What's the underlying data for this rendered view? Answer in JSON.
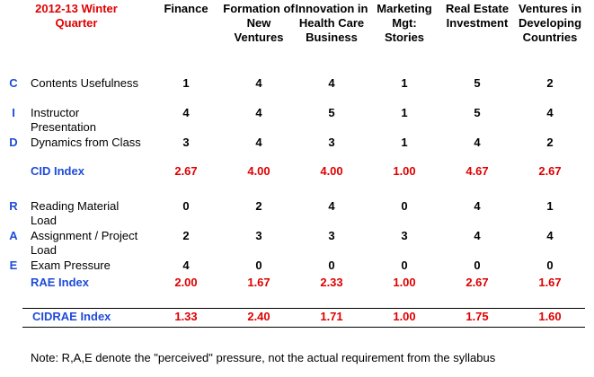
{
  "header": {
    "quarter": "2012-13 Winter Quarter",
    "columns": [
      "Finance",
      "Formation of New Ventures",
      "Innovation in Health Care Business",
      "Marketing Mgt: Stories",
      "Real Estate Investment",
      "Ventures in Developing Countries"
    ]
  },
  "rows": [
    {
      "letter": "C",
      "label": "Contents Usefulness",
      "values": [
        "1",
        "4",
        "4",
        "1",
        "5",
        "2"
      ]
    },
    {
      "letter": "I",
      "label": "Instructor Presentation",
      "values": [
        "4",
        "4",
        "5",
        "1",
        "5",
        "4"
      ]
    },
    {
      "letter": "D",
      "label": "Dynamics from Class",
      "values": [
        "3",
        "4",
        "3",
        "1",
        "4",
        "2"
      ]
    },
    {
      "letter": "",
      "label": "CID Index",
      "values": [
        "2.67",
        "4.00",
        "4.00",
        "1.00",
        "4.67",
        "2.67"
      ],
      "index": true
    },
    {
      "letter": "R",
      "label": "Reading Material Load",
      "values": [
        "0",
        "2",
        "4",
        "0",
        "4",
        "1"
      ]
    },
    {
      "letter": "A",
      "label": "Assignment / Project Load",
      "values": [
        "2",
        "3",
        "3",
        "3",
        "4",
        "4"
      ]
    },
    {
      "letter": "E",
      "label": "Exam Pressure",
      "values": [
        "4",
        "0",
        "0",
        "0",
        "0",
        "0"
      ]
    },
    {
      "letter": "",
      "label": "RAE Index",
      "values": [
        "2.00",
        "1.67",
        "2.33",
        "1.00",
        "2.67",
        "1.67"
      ],
      "index": true
    }
  ],
  "cidrae": {
    "label": "CIDRAE Index",
    "values": [
      "1.33",
      "2.40",
      "1.71",
      "1.00",
      "1.75",
      "1.60"
    ]
  },
  "note": "Note: R,A,E denote the \"perceived\" pressure, not the actual requirement from the syllabus",
  "colors": {
    "red": "#e00000",
    "blue": "#1f4bd8"
  }
}
